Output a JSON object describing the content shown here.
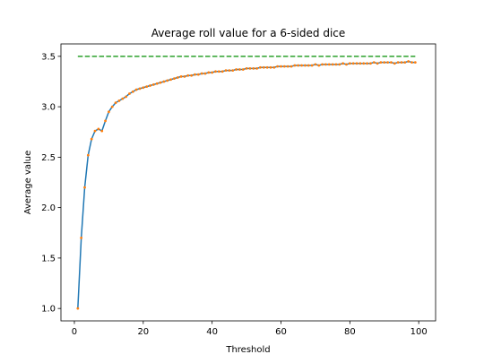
{
  "chart_data": {
    "type": "line",
    "title": "Average roll value for a 6-sided dice",
    "xlabel": "Threshold",
    "ylabel": "Average value",
    "xlim": [
      -3.9,
      104.9
    ],
    "ylim": [
      0.877,
      3.623
    ],
    "x_ticks": [
      0,
      20,
      40,
      60,
      80,
      100
    ],
    "x_tick_labels": [
      "0",
      "20",
      "40",
      "60",
      "80",
      "100"
    ],
    "y_ticks": [
      1.0,
      1.5,
      2.0,
      2.5,
      3.0,
      3.5
    ],
    "y_tick_labels": [
      "1.0",
      "1.5",
      "2.0",
      "2.5",
      "3.0",
      "3.5"
    ],
    "grid": false,
    "colors": {
      "line": "#1f77b4",
      "points": "#ff7f0e",
      "reference": "#2ca02c"
    },
    "reference_line": {
      "y": 3.5,
      "x": [
        1,
        99
      ],
      "style": "dashed"
    },
    "x": [
      1,
      2,
      3,
      4,
      5,
      6,
      7,
      8,
      9,
      10,
      11,
      12,
      13,
      14,
      15,
      16,
      17,
      18,
      19,
      20,
      21,
      22,
      23,
      24,
      25,
      26,
      27,
      28,
      29,
      30,
      31,
      32,
      33,
      34,
      35,
      36,
      37,
      38,
      39,
      40,
      41,
      42,
      43,
      44,
      45,
      46,
      47,
      48,
      49,
      50,
      51,
      52,
      53,
      54,
      55,
      56,
      57,
      58,
      59,
      60,
      61,
      62,
      63,
      64,
      65,
      66,
      67,
      68,
      69,
      70,
      71,
      72,
      73,
      74,
      75,
      76,
      77,
      78,
      79,
      80,
      81,
      82,
      83,
      84,
      85,
      86,
      87,
      88,
      89,
      90,
      91,
      92,
      93,
      94,
      95,
      96,
      97,
      98,
      99
    ],
    "series": [
      {
        "values": [
          1.0,
          1.7,
          2.2,
          2.52,
          2.68,
          2.76,
          2.78,
          2.76,
          2.86,
          2.95,
          3.0,
          3.04,
          3.06,
          3.08,
          3.1,
          3.13,
          3.15,
          3.17,
          3.18,
          3.19,
          3.2,
          3.21,
          3.22,
          3.23,
          3.24,
          3.25,
          3.26,
          3.27,
          3.28,
          3.29,
          3.3,
          3.3,
          3.31,
          3.31,
          3.32,
          3.32,
          3.33,
          3.33,
          3.34,
          3.34,
          3.35,
          3.35,
          3.35,
          3.36,
          3.36,
          3.36,
          3.37,
          3.37,
          3.37,
          3.38,
          3.38,
          3.38,
          3.38,
          3.39,
          3.39,
          3.39,
          3.39,
          3.39,
          3.4,
          3.4,
          3.4,
          3.4,
          3.4,
          3.41,
          3.41,
          3.41,
          3.41,
          3.41,
          3.41,
          3.42,
          3.41,
          3.42,
          3.42,
          3.42,
          3.42,
          3.42,
          3.42,
          3.43,
          3.42,
          3.43,
          3.43,
          3.43,
          3.43,
          3.43,
          3.43,
          3.43,
          3.44,
          3.43,
          3.44,
          3.44,
          3.44,
          3.44,
          3.43,
          3.44,
          3.44,
          3.44,
          3.45,
          3.44,
          3.44
        ]
      }
    ]
  }
}
